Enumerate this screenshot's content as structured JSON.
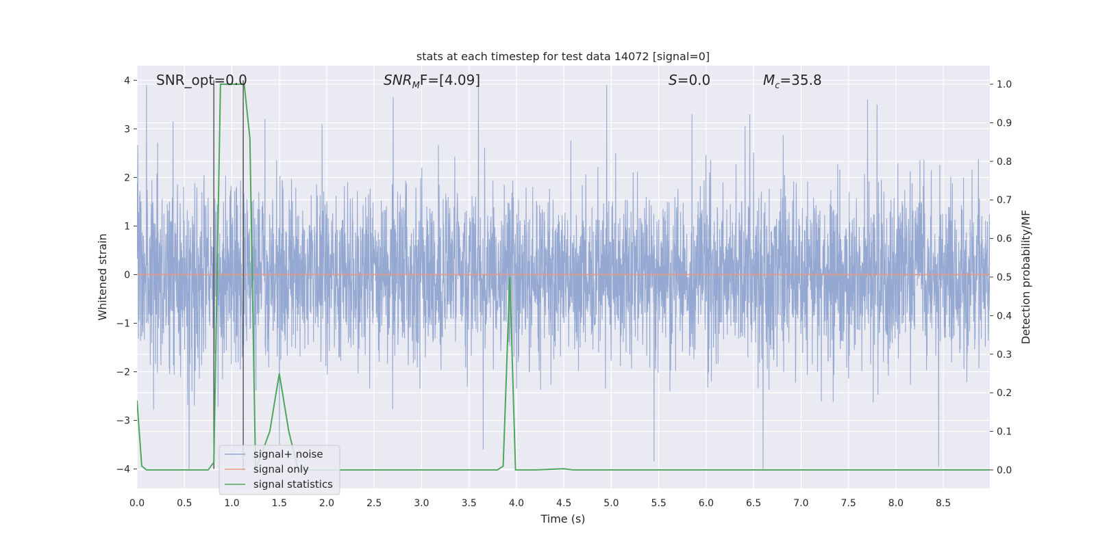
{
  "chart_data": {
    "type": "line",
    "title": "stats at each timestep for test data 14072 [signal=0]",
    "xlabel": "Time (s)",
    "ylabel_left": "Whitened strain",
    "ylabel_right": "Detection probability/MF",
    "xlim": [
      0.0,
      8.99
    ],
    "ylim_left": [
      -4.4,
      4.3
    ],
    "ylim_right": [
      -0.048,
      1.048
    ],
    "x_ticks": [
      "0.0",
      "0.5",
      "1.0",
      "1.5",
      "2.0",
      "2.5",
      "3.0",
      "3.5",
      "4.0",
      "4.5",
      "5.0",
      "5.5",
      "6.0",
      "6.5",
      "7.0",
      "7.5",
      "8.0",
      "8.5"
    ],
    "y_ticks_left": [
      "−4",
      "−3",
      "−2",
      "−1",
      "0",
      "1",
      "2",
      "3",
      "4"
    ],
    "y_ticks_right": [
      "0.0",
      "0.1",
      "0.2",
      "0.3",
      "0.4",
      "0.5",
      "0.6",
      "0.7",
      "0.8",
      "0.9",
      "1.0"
    ],
    "grid": true,
    "legend_placement": "lower-left",
    "annotations": {
      "snr_opt": "SNR_opt=0.0",
      "snr_mf_prefix": "SNR",
      "snr_mf_sub": "M",
      "snr_mf_suffix": "F=[4.09]",
      "s_prefix": "S",
      "s_suffix": "=0.0",
      "mc_prefix": "M",
      "mc_sub": "c",
      "mc_suffix": "=35.8"
    },
    "vertical_markers_x": [
      0.81,
      1.12
    ],
    "series": [
      {
        "name": "signal+ noise",
        "axis": "left",
        "color": "#8fa4cf",
        "style": "dense noise, envelope approx. -2.2 to +2.4 with spikes up to 3.9 / down to -4.0",
        "spikes": [
          {
            "x": 0.1,
            "y": 3.9
          },
          {
            "x": 0.38,
            "y": 3.15
          },
          {
            "x": 0.55,
            "y": -4.0
          },
          {
            "x": 1.35,
            "y": 3.2
          },
          {
            "x": 1.5,
            "y": -3.5
          },
          {
            "x": 1.95,
            "y": 3.1
          },
          {
            "x": 2.7,
            "y": 3.65
          },
          {
            "x": 3.6,
            "y": 3.9
          },
          {
            "x": 3.65,
            "y": -3.6
          },
          {
            "x": 4.95,
            "y": 3.9
          },
          {
            "x": 5.45,
            "y": -3.85
          },
          {
            "x": 5.85,
            "y": 3.3
          },
          {
            "x": 6.6,
            "y": -4.0
          },
          {
            "x": 7.7,
            "y": 3.6
          },
          {
            "x": 7.8,
            "y": 3.5
          },
          {
            "x": 8.45,
            "y": -3.95
          }
        ]
      },
      {
        "name": "signal only",
        "axis": "left",
        "color": "#e8997e",
        "x": [
          0.0,
          8.99
        ],
        "y": [
          0.0,
          0.0
        ]
      },
      {
        "name": "signal statistics",
        "axis": "right",
        "color": "#4ea65e",
        "x": [
          0.0,
          0.05,
          0.1,
          0.75,
          0.81,
          0.88,
          1.13,
          1.19,
          1.25,
          1.4,
          1.5,
          1.6,
          1.7,
          3.8,
          3.86,
          3.93,
          3.99,
          4.2,
          4.5,
          4.6,
          8.99
        ],
        "y": [
          0.18,
          0.01,
          0.0,
          0.0,
          0.02,
          1.0,
          1.0,
          0.86,
          0.0,
          0.1,
          0.25,
          0.1,
          0.0,
          0.0,
          0.01,
          0.5,
          0.0,
          0.0,
          0.003,
          0.0,
          0.0
        ]
      }
    ]
  }
}
